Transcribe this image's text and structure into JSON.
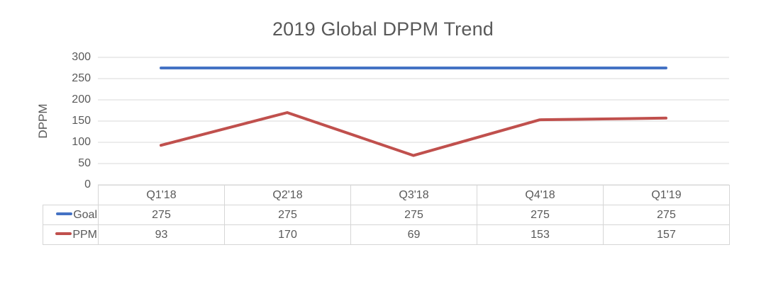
{
  "chart_data": {
    "type": "line",
    "title": "2019 Global DPPM Trend",
    "xlabel": "",
    "ylabel": "DPPM",
    "categories": [
      "Q1'18",
      "Q2'18",
      "Q3'18",
      "Q4'18",
      "Q1'19"
    ],
    "series": [
      {
        "name": "Goal",
        "values": [
          275,
          275,
          275,
          275,
          275
        ],
        "color": "#4472C4"
      },
      {
        "name": "PPM",
        "values": [
          93,
          170,
          69,
          153,
          157
        ],
        "color": "#C0504D"
      }
    ],
    "ylim": [
      0,
      300
    ],
    "y_ticks": [
      0,
      50,
      100,
      150,
      200,
      250,
      300
    ],
    "grid": true,
    "legend_position": "data-table-left"
  },
  "colors": {
    "goal_line": "#4472C4",
    "ppm_line": "#C0504D",
    "gridline": "#d9d9d9",
    "table_border": "#d6d6d6",
    "text": "#595959"
  }
}
